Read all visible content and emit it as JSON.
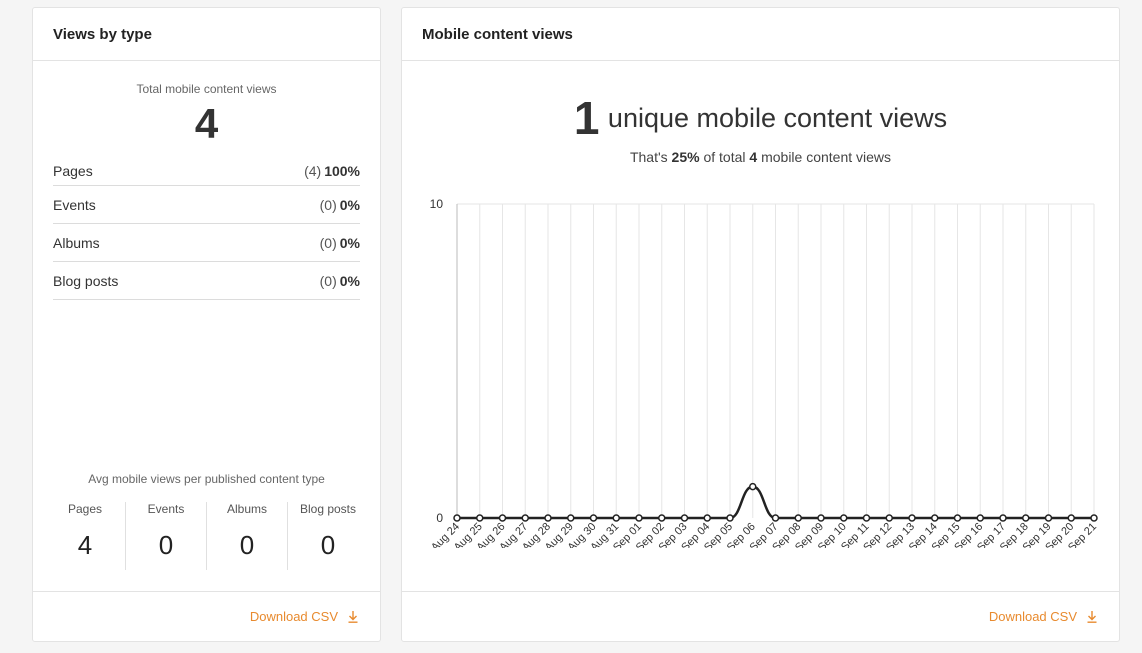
{
  "views_by_type": {
    "title": "Views by type",
    "total_label": "Total mobile content views",
    "total_value": "4",
    "types": [
      {
        "name": "Pages",
        "count": "(4)",
        "pct": "100%"
      },
      {
        "name": "Events",
        "count": "(0)",
        "pct": "0%"
      },
      {
        "name": "Albums",
        "count": "(0)",
        "pct": "0%"
      },
      {
        "name": "Blog posts",
        "count": "(0)",
        "pct": "0%"
      }
    ],
    "avg_title": "Avg mobile views per published content type",
    "avg": [
      {
        "label": "Pages",
        "value": "4"
      },
      {
        "label": "Events",
        "value": "0"
      },
      {
        "label": "Albums",
        "value": "0"
      },
      {
        "label": "Blog posts",
        "value": "0"
      }
    ],
    "download_label": "Download CSV"
  },
  "mobile_content_views": {
    "title": "Mobile content views",
    "unique_value": "1",
    "unique_text": "unique mobile content views",
    "sub_prefix": "That's",
    "sub_pct": "25%",
    "sub_middle": "of total",
    "sub_total": "4",
    "sub_suffix": "mobile content views",
    "download_label": "Download CSV"
  },
  "colors": {
    "accent": "#e88a2e",
    "line": "#222222",
    "grid": "#e6e6e6"
  },
  "chart_data": {
    "type": "line",
    "x": [
      "Aug 24",
      "Aug 25",
      "Aug 26",
      "Aug 27",
      "Aug 28",
      "Aug 29",
      "Aug 30",
      "Aug 31",
      "Sep 01",
      "Sep 02",
      "Sep 03",
      "Sep 04",
      "Sep 05",
      "Sep 06",
      "Sep 07",
      "Sep 08",
      "Sep 09",
      "Sep 10",
      "Sep 11",
      "Sep 12",
      "Sep 13",
      "Sep 14",
      "Sep 15",
      "Sep 16",
      "Sep 17",
      "Sep 18",
      "Sep 19",
      "Sep 20",
      "Sep 21"
    ],
    "series": [
      {
        "values": [
          0,
          0,
          0,
          0,
          0,
          0,
          0,
          0,
          0,
          0,
          0,
          0,
          0,
          1,
          0,
          0,
          0,
          0,
          0,
          0,
          0,
          0,
          0,
          0,
          0,
          0,
          0,
          0,
          0
        ]
      }
    ],
    "ylim": [
      0,
      10
    ],
    "yticks": [
      "0",
      "10"
    ],
    "grid": true
  }
}
